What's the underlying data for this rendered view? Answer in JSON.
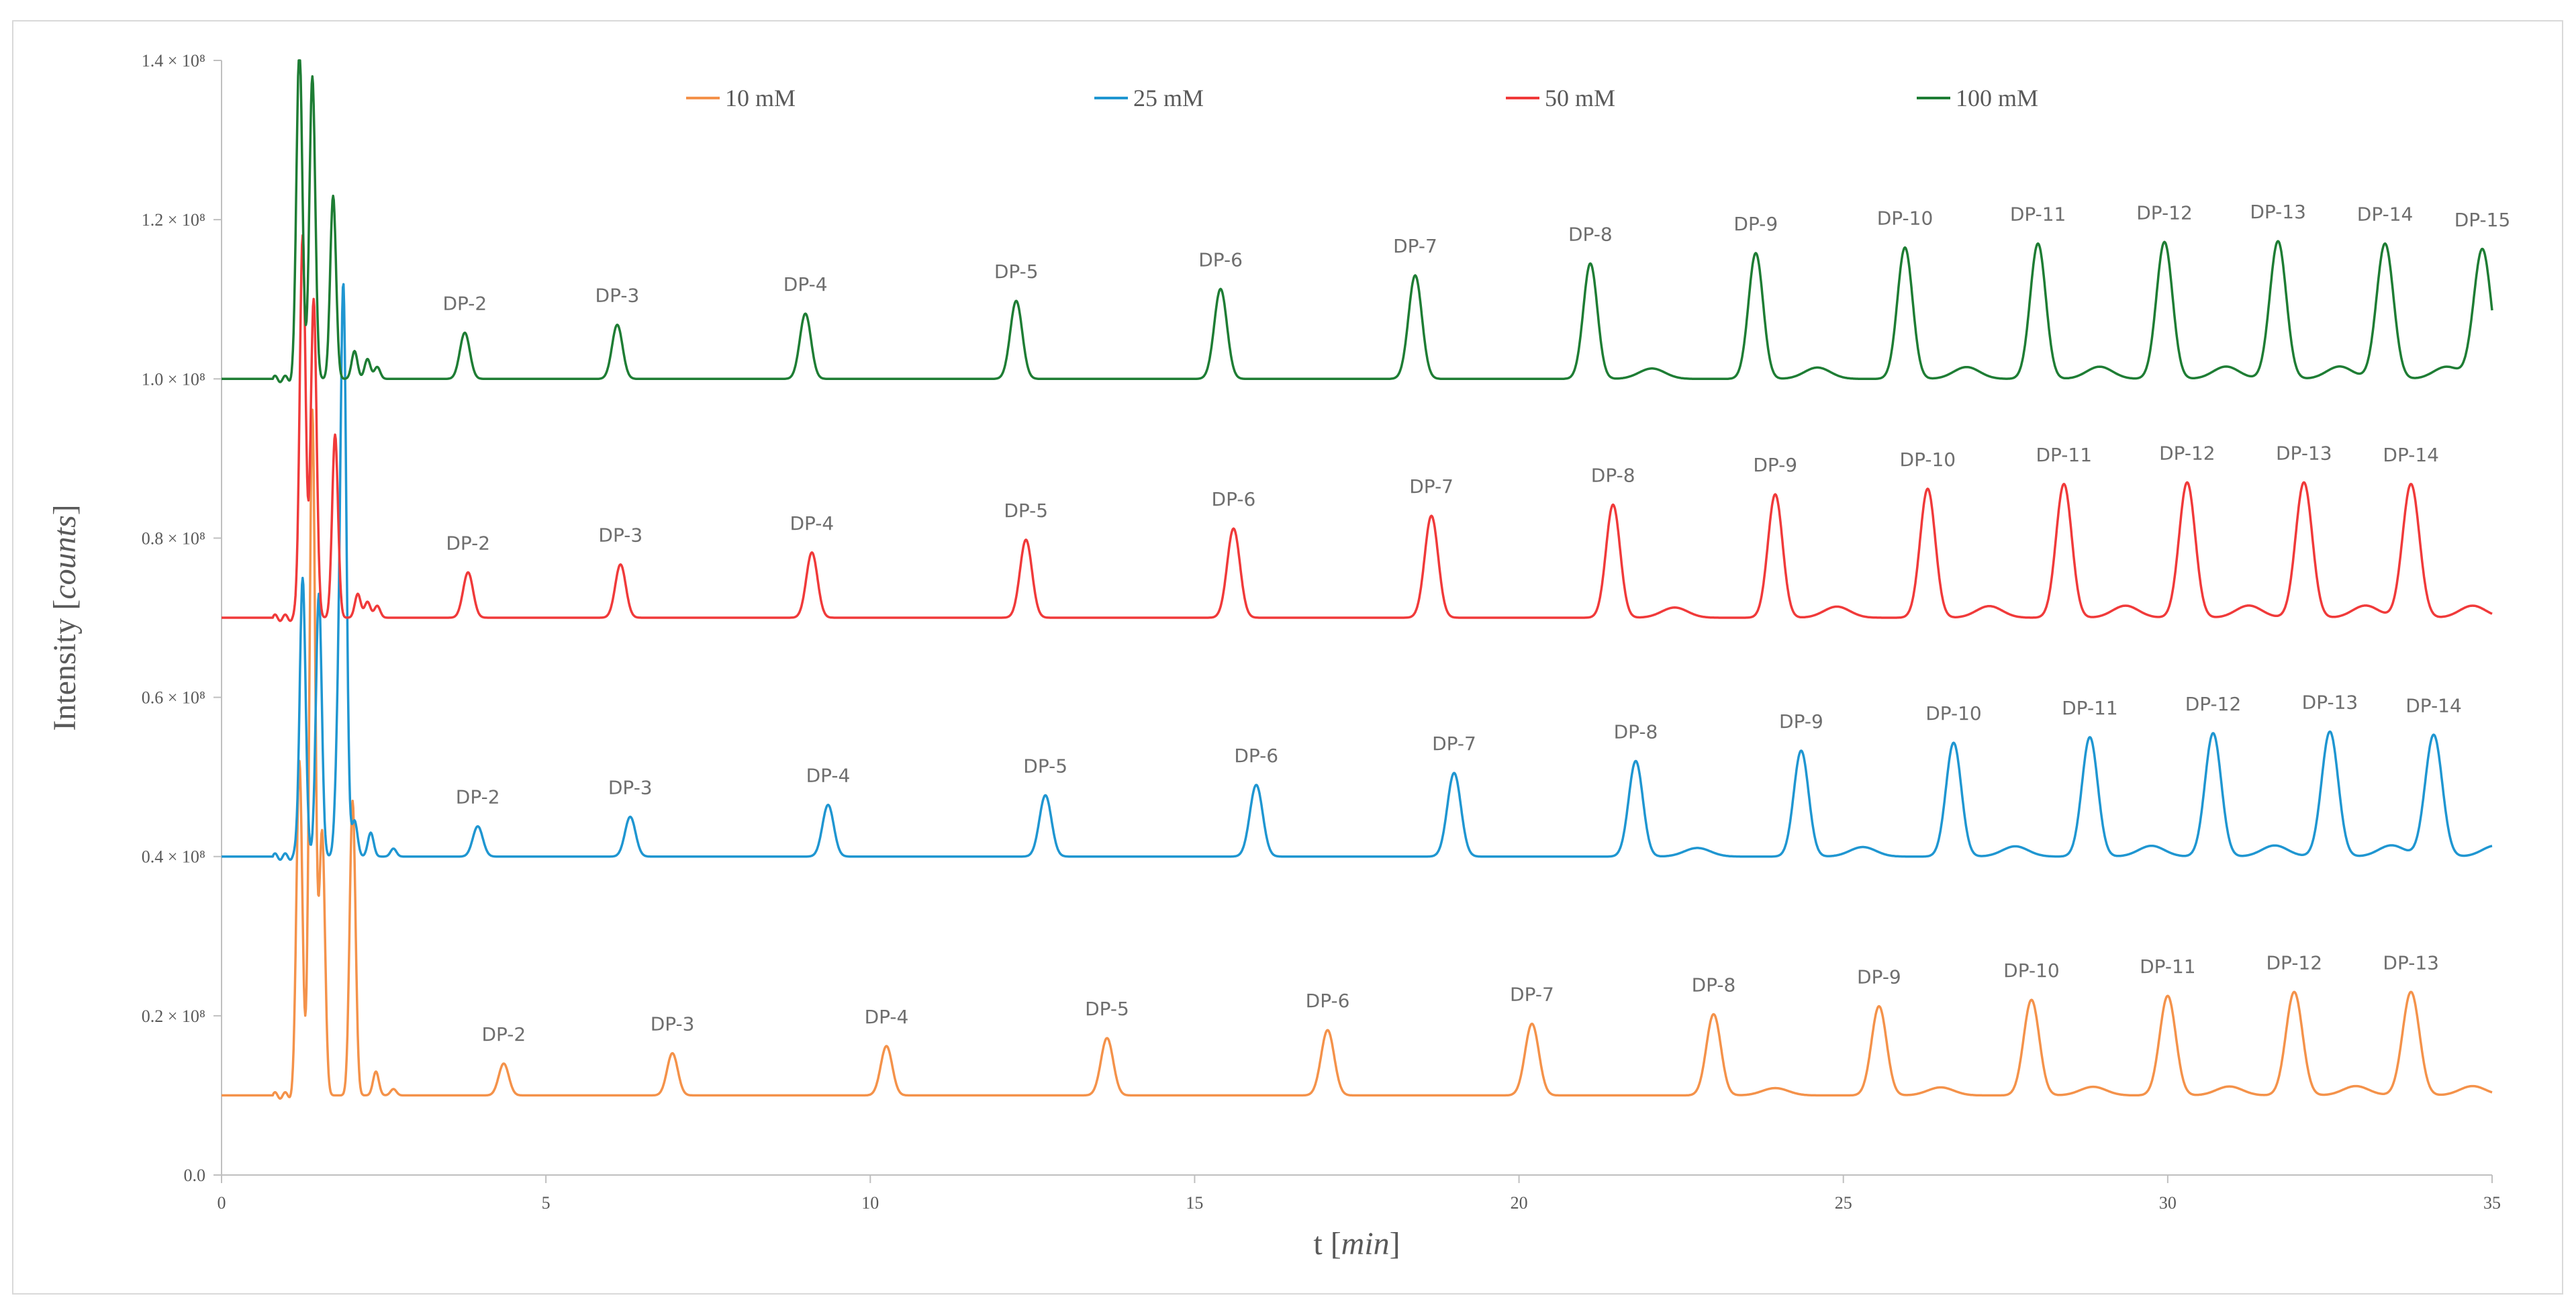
{
  "chart_data": {
    "type": "line",
    "title": "",
    "xlabel": "t",
    "xlabel_unit": "min",
    "ylabel": "Intensity",
    "ylabel_unit": "counts",
    "xlim": [
      0,
      35
    ],
    "ylim": [
      0,
      1.4
    ],
    "x_ticks": [
      0,
      5,
      10,
      15,
      20,
      25,
      30,
      35
    ],
    "x_tick_labels": [
      "0",
      "5",
      "10",
      "15",
      "20",
      "25",
      "30",
      "35"
    ],
    "y_ticks": [
      0,
      0.2,
      0.4,
      0.6,
      0.8,
      1.0,
      1.2,
      1.4
    ],
    "y_tick_labels": [
      "0.0",
      "0.2 × 10⁸",
      "0.4 × 10⁸",
      "0.6 × 10⁸",
      "0.8 × 10⁸",
      "1.0 × 10⁸",
      "1.2 × 10⁸",
      "1.4 × 10⁸"
    ],
    "y_scale_note": "× 10⁸",
    "grid": false,
    "legend_position": "top",
    "series": [
      {
        "name": "10 mM",
        "color": "#f4924a",
        "baseline": 0.1,
        "early_peaks": [
          [
            1.2,
            0.42
          ],
          [
            1.4,
            0.86
          ],
          [
            1.55,
            0.33
          ],
          [
            2.02,
            0.37
          ],
          [
            2.38,
            0.03
          ],
          [
            2.65,
            0.008
          ]
        ],
        "peaks": [
          {
            "label": "DP-2",
            "t": 4.35,
            "height": 0.04
          },
          {
            "label": "DP-3",
            "t": 6.95,
            "height": 0.053
          },
          {
            "label": "DP-4",
            "t": 10.25,
            "height": 0.062
          },
          {
            "label": "DP-5",
            "t": 13.65,
            "height": 0.072
          },
          {
            "label": "DP-6",
            "t": 17.05,
            "height": 0.082
          },
          {
            "label": "DP-7",
            "t": 20.2,
            "height": 0.09
          },
          {
            "label": "DP-8",
            "t": 23.0,
            "height": 0.102
          },
          {
            "label": "DP-9",
            "t": 25.55,
            "height": 0.112
          },
          {
            "label": "DP-10",
            "t": 27.9,
            "height": 0.12
          },
          {
            "label": "DP-11",
            "t": 30.0,
            "height": 0.125
          },
          {
            "label": "DP-12",
            "t": 31.95,
            "height": 0.13
          },
          {
            "label": "DP-13",
            "t": 33.75,
            "height": 0.13
          }
        ]
      },
      {
        "name": "25 mM",
        "color": "#1f96d1",
        "baseline": 0.4,
        "early_peaks": [
          [
            1.25,
            0.35
          ],
          [
            1.5,
            0.33
          ],
          [
            1.8,
            0.14
          ],
          [
            1.88,
            0.69
          ],
          [
            2.05,
            0.045
          ],
          [
            2.3,
            0.03
          ],
          [
            2.65,
            0.01
          ]
        ],
        "peaks": [
          {
            "label": "DP-2",
            "t": 3.95,
            "height": 0.038
          },
          {
            "label": "DP-3",
            "t": 6.3,
            "height": 0.05
          },
          {
            "label": "DP-4",
            "t": 9.35,
            "height": 0.065
          },
          {
            "label": "DP-5",
            "t": 12.7,
            "height": 0.077
          },
          {
            "label": "DP-6",
            "t": 15.95,
            "height": 0.09
          },
          {
            "label": "DP-7",
            "t": 19.0,
            "height": 0.105
          },
          {
            "label": "DP-8",
            "t": 21.8,
            "height": 0.12
          },
          {
            "label": "DP-9",
            "t": 24.35,
            "height": 0.133
          },
          {
            "label": "DP-10",
            "t": 26.7,
            "height": 0.143
          },
          {
            "label": "DP-11",
            "t": 28.8,
            "height": 0.15
          },
          {
            "label": "DP-12",
            "t": 30.7,
            "height": 0.155
          },
          {
            "label": "DP-13",
            "t": 32.5,
            "height": 0.157
          },
          {
            "label": "DP-14",
            "t": 34.1,
            "height": 0.153
          }
        ]
      },
      {
        "name": "50 mM",
        "color": "#f03a3a",
        "baseline": 0.7,
        "early_peaks": [
          [
            1.25,
            0.48
          ],
          [
            1.42,
            0.4
          ],
          [
            1.75,
            0.23
          ],
          [
            2.1,
            0.03
          ],
          [
            2.25,
            0.02
          ],
          [
            2.4,
            0.015
          ]
        ],
        "peaks": [
          {
            "label": "DP-2",
            "t": 3.8,
            "height": 0.057
          },
          {
            "label": "DP-3",
            "t": 6.15,
            "height": 0.067
          },
          {
            "label": "DP-4",
            "t": 9.1,
            "height": 0.082
          },
          {
            "label": "DP-5",
            "t": 12.4,
            "height": 0.098
          },
          {
            "label": "DP-6",
            "t": 15.6,
            "height": 0.112
          },
          {
            "label": "DP-7",
            "t": 18.65,
            "height": 0.128
          },
          {
            "label": "DP-8",
            "t": 21.45,
            "height": 0.142
          },
          {
            "label": "DP-9",
            "t": 23.95,
            "height": 0.155
          },
          {
            "label": "DP-10",
            "t": 26.3,
            "height": 0.162
          },
          {
            "label": "DP-11",
            "t": 28.4,
            "height": 0.168
          },
          {
            "label": "DP-12",
            "t": 30.3,
            "height": 0.17
          },
          {
            "label": "DP-13",
            "t": 32.1,
            "height": 0.17
          },
          {
            "label": "DP-14",
            "t": 33.75,
            "height": 0.168
          }
        ]
      },
      {
        "name": "100 mM",
        "color": "#1e7d34",
        "baseline": 1.0,
        "early_peaks": [
          [
            1.2,
            0.42
          ],
          [
            1.4,
            0.38
          ],
          [
            1.72,
            0.23
          ],
          [
            2.05,
            0.035
          ],
          [
            2.25,
            0.025
          ],
          [
            2.4,
            0.015
          ]
        ],
        "peaks": [
          {
            "label": "DP-2",
            "t": 3.75,
            "height": 0.058
          },
          {
            "label": "DP-3",
            "t": 6.1,
            "height": 0.068
          },
          {
            "label": "DP-4",
            "t": 9.0,
            "height": 0.082
          },
          {
            "label": "DP-5",
            "t": 12.25,
            "height": 0.098
          },
          {
            "label": "DP-6",
            "t": 15.4,
            "height": 0.113
          },
          {
            "label": "DP-7",
            "t": 18.4,
            "height": 0.13
          },
          {
            "label": "DP-8",
            "t": 21.1,
            "height": 0.145
          },
          {
            "label": "DP-9",
            "t": 23.65,
            "height": 0.158
          },
          {
            "label": "DP-10",
            "t": 25.95,
            "height": 0.165
          },
          {
            "label": "DP-11",
            "t": 28.0,
            "height": 0.17
          },
          {
            "label": "DP-12",
            "t": 29.95,
            "height": 0.172
          },
          {
            "label": "DP-13",
            "t": 31.7,
            "height": 0.173
          },
          {
            "label": "DP-14",
            "t": 33.35,
            "height": 0.17
          },
          {
            "label": "DP-15",
            "t": 34.85,
            "height": 0.163
          }
        ]
      }
    ]
  }
}
